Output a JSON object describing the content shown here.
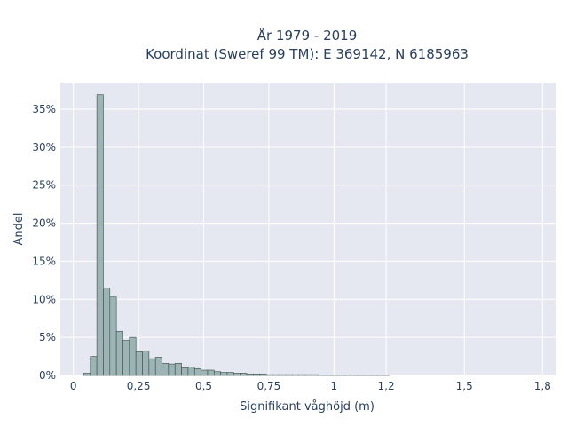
{
  "chart_data": {
    "type": "bar",
    "title": "År 1979 - 2019",
    "subtitle": "Koordinat (Sweref 99 TM): E 369142, N 6185963",
    "xlabel": "Signifikant våghöjd (m)",
    "ylabel": "Andel",
    "xlim": [
      -0.05,
      1.85
    ],
    "ylim": [
      0,
      0.385
    ],
    "grid": true,
    "bin_width": 0.025,
    "bins_start": [
      0.04,
      0.065,
      0.09,
      0.115,
      0.14,
      0.165,
      0.19,
      0.215,
      0.24,
      0.265,
      0.29,
      0.315,
      0.34,
      0.365,
      0.39,
      0.415,
      0.44,
      0.465,
      0.49,
      0.515,
      0.54,
      0.565,
      0.59,
      0.615,
      0.64,
      0.665,
      0.69,
      0.715,
      0.74,
      0.765,
      0.79,
      0.815,
      0.84,
      0.865,
      0.89,
      0.915,
      0.94,
      0.965,
      0.99,
      1.015,
      1.04,
      1.065,
      1.09,
      1.115,
      1.14,
      1.165,
      1.19
    ],
    "values": [
      0.003,
      0.025,
      0.369,
      0.115,
      0.103,
      0.058,
      0.046,
      0.05,
      0.031,
      0.032,
      0.022,
      0.024,
      0.016,
      0.015,
      0.016,
      0.01,
      0.011,
      0.009,
      0.007,
      0.007,
      0.005,
      0.004,
      0.004,
      0.003,
      0.003,
      0.002,
      0.002,
      0.002,
      0.001,
      0.001,
      0.001,
      0.001,
      0.001,
      0.001,
      0.001,
      0.001,
      0.0005,
      0.0005,
      0.0005,
      0.0005,
      0.0005,
      0.0003,
      0.0003,
      0.0003,
      0.0003,
      0.0003,
      0.0003
    ],
    "x_ticks": [
      0,
      0.25,
      0.5,
      0.75,
      1,
      1.2,
      1.5,
      1.8
    ],
    "x_tick_labels": [
      "0",
      "0,25",
      "0,5",
      "0,75",
      "1",
      "1,2",
      "1,5",
      "1,8"
    ],
    "y_ticks": [
      0,
      0.05,
      0.1,
      0.15,
      0.2,
      0.25,
      0.3,
      0.35
    ],
    "y_tick_labels": [
      "0%",
      "5%",
      "10%",
      "15%",
      "20%",
      "25%",
      "30%",
      "35%"
    ],
    "colors": {
      "bar_fill": "#9db4b4",
      "bar_stroke": "#3d4a4a",
      "plot_bg": "#e5e8f0",
      "grid": "#ffffff"
    }
  }
}
